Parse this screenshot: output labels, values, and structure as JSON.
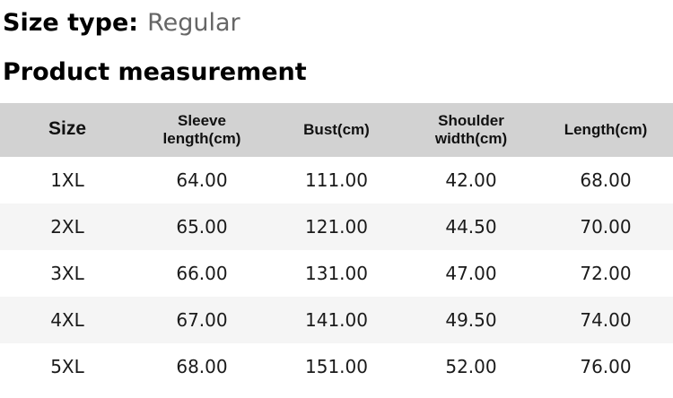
{
  "header": {
    "size_type_label": "Size type:",
    "size_type_value": "Regular",
    "section_title": "Product measurement"
  },
  "table": {
    "columns": [
      "Size",
      "Sleeve length(cm)",
      "Bust(cm)",
      "Shoulder width(cm)",
      "Length(cm)"
    ],
    "rows": [
      [
        "1XL",
        "64.00",
        "111.00",
        "42.00",
        "68.00"
      ],
      [
        "2XL",
        "65.00",
        "121.00",
        "44.50",
        "70.00"
      ],
      [
        "3XL",
        "66.00",
        "131.00",
        "47.00",
        "72.00"
      ],
      [
        "4XL",
        "67.00",
        "141.00",
        "49.50",
        "74.00"
      ],
      [
        "5XL",
        "68.00",
        "151.00",
        "52.00",
        "76.00"
      ]
    ]
  },
  "colors": {
    "header_bg": "#d2d2d2",
    "zebra_bg": "#f5f5f5",
    "text": "#111111",
    "muted": "#666666"
  }
}
